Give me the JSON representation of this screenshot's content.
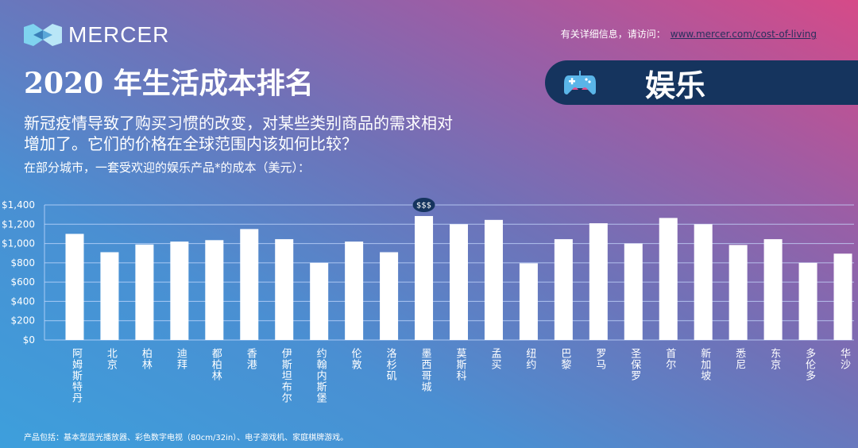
{
  "header": {
    "logo_text": "MERCER",
    "title": "2020 年生活成本排名",
    "subtitle": "新冠疫情导致了购买习惯的改变，对某些类别商品的需求相对增加了。它们的价格在全球范围内该如何比较？",
    "info_prefix": "有关详细信息，请访问：",
    "info_link": "www.mercer.com/cost-of-living"
  },
  "banner": {
    "icon": "game-controller-icon",
    "label": "娱乐",
    "background": "#15345e"
  },
  "footnote": "产品包括：基本型蓝光播放器、彩色数字电视（80cm/32in）、电子游戏机、家庭棋牌游戏。",
  "chart_data": {
    "type": "bar",
    "title": "在部分城市，一套受欢迎的娱乐产品*的成本（美元）：",
    "categories": [
      "阿姆斯特丹",
      "北京",
      "柏林",
      "迪拜",
      "都柏林",
      "香港",
      "伊斯坦布尔",
      "约翰内斯堡",
      "伦敦",
      "洛杉矶",
      "墨西哥城",
      "莫斯科",
      "孟买",
      "纽约",
      "巴黎",
      "罗马",
      "圣保罗",
      "首尔",
      "新加坡",
      "悉尼",
      "东京",
      "多伦多",
      "华沙"
    ],
    "values": [
      1100,
      910,
      990,
      1020,
      1035,
      1150,
      1045,
      800,
      1020,
      910,
      1285,
      1200,
      1245,
      795,
      1045,
      1210,
      1000,
      1265,
      1200,
      985,
      1045,
      800,
      895
    ],
    "ylim": [
      0,
      1400
    ],
    "yticks": [
      "$0",
      "$200",
      "$400",
      "$600",
      "$800",
      "$1,000",
      "$1,200",
      "$1,400"
    ],
    "ytick_values": [
      0,
      200,
      400,
      600,
      800,
      1000,
      1200,
      1400
    ],
    "grid": true,
    "annotation": {
      "category": "墨西哥城",
      "text": "$$$"
    },
    "bar_color": "#ffffff",
    "annotation_color": "#15345e"
  }
}
